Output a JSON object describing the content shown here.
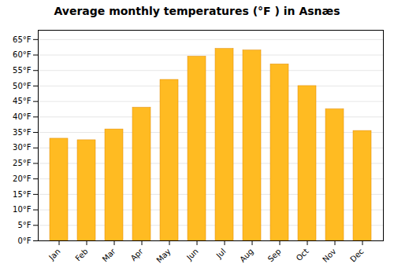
{
  "chart_data": {
    "type": "bar",
    "title": "Average monthly temperatures (°F ) in Asnæs",
    "categories": [
      "Jan",
      "Feb",
      "Mar",
      "Apr",
      "May",
      "Jun",
      "Jul",
      "Aug",
      "Sep",
      "Oct",
      "Nov",
      "Dec"
    ],
    "values": [
      33.0,
      32.5,
      36.0,
      43.0,
      52.0,
      59.5,
      62.0,
      61.5,
      57.0,
      50.0,
      42.5,
      35.5
    ],
    "color": "#FFBB22",
    "ylim": [
      0,
      68
    ],
    "yticks": [
      {
        "value": 0,
        "label": "0°F"
      },
      {
        "value": 5,
        "label": "5°F"
      },
      {
        "value": 10,
        "label": "10°F"
      },
      {
        "value": 15,
        "label": "15°F"
      },
      {
        "value": 20,
        "label": "20°F"
      },
      {
        "value": 25,
        "label": "25°F"
      },
      {
        "value": 30,
        "label": "30°F"
      },
      {
        "value": 35,
        "label": "35°F"
      },
      {
        "value": 40,
        "label": "40°F"
      },
      {
        "value": 45,
        "label": "45°F"
      },
      {
        "value": 50,
        "label": "50°F"
      },
      {
        "value": 55,
        "label": "55°F"
      },
      {
        "value": 60,
        "label": "60°F"
      },
      {
        "value": 65,
        "label": "65°F"
      }
    ],
    "grid": true
  }
}
